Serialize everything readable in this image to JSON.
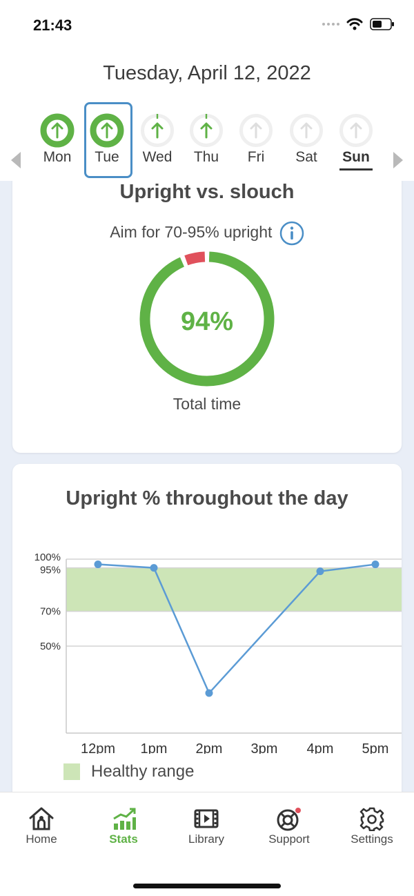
{
  "status": {
    "time": "21:43"
  },
  "header": {
    "date": "Tuesday, April 12, 2022",
    "days": [
      {
        "label": "Mon",
        "state": "complete"
      },
      {
        "label": "Tue",
        "state": "complete",
        "selected": true
      },
      {
        "label": "Wed",
        "state": "partial"
      },
      {
        "label": "Thu",
        "state": "partial"
      },
      {
        "label": "Fri",
        "state": "none"
      },
      {
        "label": "Sat",
        "state": "none"
      },
      {
        "label": "Sun",
        "state": "none",
        "today": true
      }
    ]
  },
  "upright_card": {
    "title": "Upright vs. slouch",
    "aim": "Aim for 70-95% upright",
    "percent_label": "94%",
    "upright_fraction": 0.94,
    "total_label": "Total time"
  },
  "day_card": {
    "title": "Upright % throughout the day",
    "legend_label": "Healthy range"
  },
  "chart_data": {
    "type": "line",
    "title": "Upright % throughout the day",
    "x": [
      "12pm",
      "1pm",
      "2pm",
      "3pm",
      "4pm",
      "5pm"
    ],
    "series": [
      {
        "values": [
          97,
          95,
          23,
          null,
          93,
          97
        ]
      }
    ],
    "y_ticks": [
      "100%",
      "95%",
      "70%",
      "50%"
    ],
    "y_tick_values": [
      100,
      95,
      70,
      50
    ],
    "ylim": [
      0,
      100
    ],
    "band": {
      "from": 70,
      "to": 95,
      "label": "Healthy range"
    },
    "grid": true
  },
  "colors": {
    "green": "#5fb246",
    "red": "#e0515c",
    "blue_line": "#5b9bd5",
    "band": "#cde5b7",
    "selected_outline": "#4a8ec6"
  },
  "tabs": [
    {
      "label": "Home",
      "icon": "home-icon"
    },
    {
      "label": "Stats",
      "icon": "stats-icon",
      "active": true
    },
    {
      "label": "Library",
      "icon": "film-icon"
    },
    {
      "label": "Support",
      "icon": "lifebuoy-icon"
    },
    {
      "label": "Settings",
      "icon": "gear-icon"
    }
  ]
}
